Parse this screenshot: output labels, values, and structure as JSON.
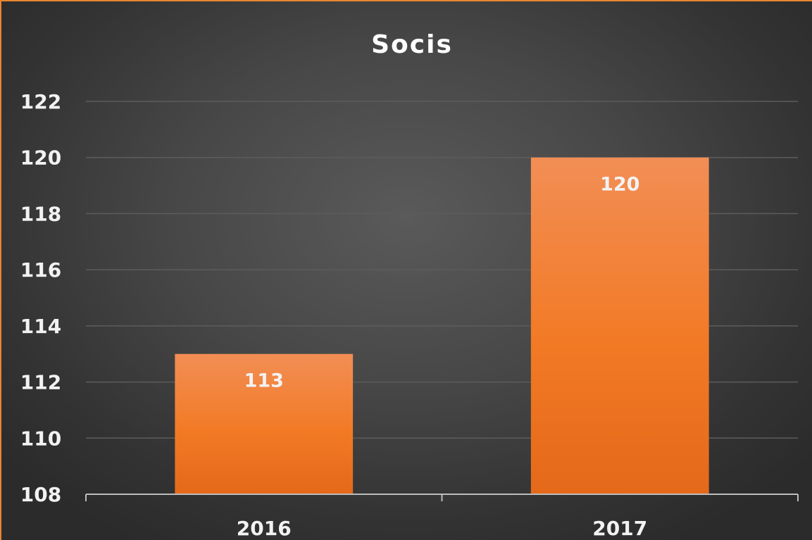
{
  "chart_data": {
    "type": "bar",
    "title": "Socis",
    "categories": [
      "2016",
      "2017"
    ],
    "values": [
      113,
      120
    ],
    "data_labels": [
      "113",
      "120"
    ],
    "ylim": [
      108,
      122
    ],
    "yticks": [
      "108",
      "110",
      "112",
      "114",
      "116",
      "118",
      "120",
      "122"
    ],
    "xlabel": "",
    "ylabel": "",
    "grid": true,
    "legend": "none",
    "colors": {
      "bar": "#f07c28",
      "bar_top": "#f28e55",
      "bar_bottom": "#e4691a",
      "frame_border": "#e8852f",
      "text": "#f2f2f2"
    }
  }
}
